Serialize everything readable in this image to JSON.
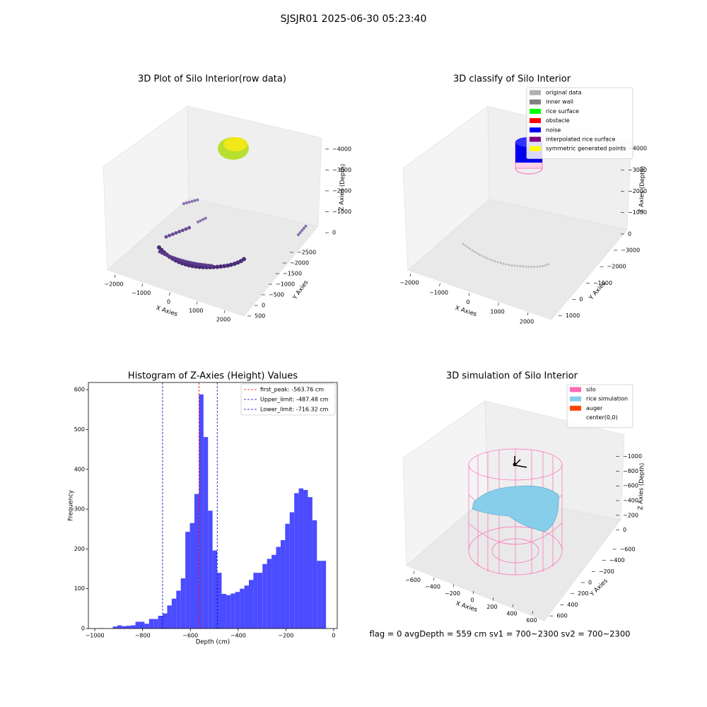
{
  "suptitle": "SJSJR01 2025-06-30 05:23:40",
  "footer": "flag = 0     avgDepth = 559 cm  sv1 = 700~2300  sv2 = 700~2300",
  "chart_data": [
    {
      "type": "scatter3d",
      "title": "3D Plot of Silo Interior(row data)",
      "xlabel": "X Axies",
      "ylabel": "Y Axies",
      "zlabel": "Z Axies (Depth)",
      "xlim": [
        -2300,
        2400
      ],
      "ylim": [
        -2700,
        700
      ],
      "zlim": [
        -4400,
        200
      ],
      "xticks": [
        {
          "value": -2000,
          "label": "−2000"
        },
        {
          "value": -1000,
          "label": "−1000"
        },
        0,
        1000,
        2000
      ],
      "yticks": [
        500,
        0,
        {
          "value": -500,
          "label": "−500"
        },
        {
          "value": -1000,
          "label": "−1000"
        },
        {
          "value": -1500,
          "label": "−1500"
        },
        {
          "value": -2000,
          "label": "−2000"
        },
        {
          "value": -2500,
          "label": "−2500"
        }
      ],
      "zticks": [
        0,
        {
          "value": -1000,
          "label": "−1000"
        },
        {
          "value": -2000,
          "label": "−2000"
        },
        {
          "value": -3000,
          "label": "−3000"
        },
        {
          "value": -4000,
          "label": "−4000"
        }
      ]
    },
    {
      "type": "scatter3d",
      "title": "3D classify of Silo Interior",
      "xlabel": "X Axies",
      "ylabel": "Y Axies",
      "zlabel": "Z Axies (Depth)",
      "xlim": [
        -2300,
        2300
      ],
      "ylim": [
        -3300,
        1400
      ],
      "zlim": [
        -4300,
        200
      ],
      "xticks": [
        {
          "value": -2000,
          "label": "−2000"
        },
        {
          "value": -1000,
          "label": "−1000"
        },
        0,
        1000,
        2000
      ],
      "yticks": [
        1000,
        0,
        {
          "value": -1000,
          "label": "−1000"
        },
        {
          "value": -2000,
          "label": "−2000"
        },
        {
          "value": -3000,
          "label": "−3000"
        }
      ],
      "zticks": [
        0,
        {
          "value": -1000,
          "label": "−1000"
        },
        {
          "value": -2000,
          "label": "−2000"
        },
        {
          "value": -3000,
          "label": "−3000"
        },
        {
          "value": -4000,
          "label": "−4000"
        }
      ],
      "legend": [
        {
          "name": "original data",
          "color": "#b0b0b0"
        },
        {
          "name": "inner wall",
          "color": "#808080"
        },
        {
          "name": "rice surface",
          "color": "#00ff00"
        },
        {
          "name": "obstacle",
          "color": "#ff0000"
        },
        {
          "name": "noise",
          "color": "#0000ff"
        },
        {
          "name": "interpolated rice surface",
          "color": "#800080"
        },
        {
          "name": "symmetric generated points",
          "color": "#ffff00"
        }
      ]
    },
    {
      "type": "histogram",
      "title": "Histogram of Z-Axies (Height) Values",
      "xlabel": "Depth (cm)",
      "ylabel": "Frequency",
      "color": "#4b4bff",
      "bins": [
        -982,
        -963,
        -944,
        -925,
        -906,
        -887,
        -868,
        -849,
        -830,
        -811,
        -792,
        -773,
        -754,
        -735,
        -716,
        -697,
        -678,
        -659,
        -640,
        -621,
        -602,
        -583,
        -564,
        -545,
        -526,
        -507,
        -488,
        -469,
        -450,
        -431,
        -412,
        -393,
        -374,
        -355,
        -336,
        -317,
        -298,
        -279,
        -260,
        -241,
        -222,
        -203,
        -184,
        -165,
        -146,
        -127,
        -108,
        -89,
        -70,
        -51,
        -32
      ],
      "counts": [
        1,
        0,
        0,
        5,
        8,
        6,
        7,
        8,
        17,
        17,
        12,
        24,
        24,
        32,
        38,
        58,
        75,
        95,
        126,
        243,
        265,
        338,
        588,
        481,
        296,
        196,
        140,
        87,
        84,
        88,
        92,
        100,
        108,
        122,
        140,
        140,
        162,
        175,
        185,
        205,
        222,
        263,
        292,
        340,
        352,
        348,
        330,
        272,
        170,
        170
      ],
      "xlim": [
        -1027,
        15
      ],
      "ylim": [
        0,
        618
      ],
      "xticks": [
        {
          "value": -1000,
          "label": "−1000"
        },
        {
          "value": -800,
          "label": "−800"
        },
        {
          "value": -600,
          "label": "−600"
        },
        {
          "value": -400,
          "label": "−400"
        },
        {
          "value": -200,
          "label": "−200"
        },
        0
      ],
      "yticks": [
        0,
        100,
        200,
        300,
        400,
        500,
        600
      ],
      "legend_corner": "upper right",
      "vlines": [
        {
          "label": "first_peak: -563.76 cm",
          "value": -563.76,
          "color": "#ff0000"
        },
        {
          "label": "Upper_limit: -487.48 cm",
          "value": -487.48,
          "color": "#0000cc"
        },
        {
          "label": "Lower_limit: -716.32 cm",
          "value": -716.32,
          "color": "#0000cc"
        }
      ]
    },
    {
      "type": "surface3d",
      "title": "3D simulation of Silo Interior",
      "xlabel": "X Axies",
      "ylabel": "Y Axies",
      "zlabel": "Z Axies (Depth)",
      "xlim": [
        -700,
        700
      ],
      "ylim": [
        -700,
        700
      ],
      "zlim": [
        -1150,
        80
      ],
      "xticks": [
        {
          "value": -600,
          "label": "−600"
        },
        {
          "value": -400,
          "label": "−400"
        },
        {
          "value": -200,
          "label": "−200"
        },
        0,
        200,
        400,
        600
      ],
      "yticks": [
        600,
        400,
        200,
        0,
        {
          "value": -200,
          "label": "−200"
        },
        {
          "value": -400,
          "label": "−400"
        },
        {
          "value": -600,
          "label": "−600"
        }
      ],
      "zticks": [
        0,
        {
          "value": -200,
          "label": "−200"
        },
        {
          "value": -400,
          "label": "−400"
        },
        {
          "value": -600,
          "label": "−600"
        },
        {
          "value": -800,
          "label": "−800"
        },
        {
          "value": -1000,
          "label": "−1000"
        }
      ],
      "legend": [
        {
          "name": "silo",
          "color": "#ff69b4"
        },
        {
          "name": "rice simulation",
          "color": "#87ceeb"
        },
        {
          "name": "auger",
          "color": "#ff4500"
        },
        {
          "name": "center(0,0)",
          "color": "#ffffff"
        }
      ]
    }
  ]
}
